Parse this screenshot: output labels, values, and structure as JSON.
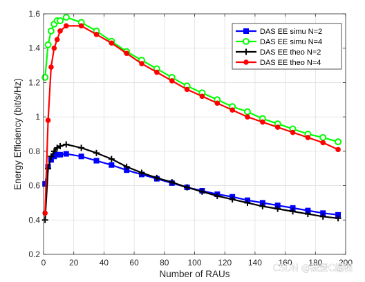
{
  "chart_data": {
    "type": "line",
    "xlabel": "Number of  RAUs",
    "ylabel": "Energy Efficiency (bit/s/Hz)",
    "xlim": [
      0,
      200
    ],
    "ylim": [
      0.2,
      1.6
    ],
    "xticks": [
      0,
      20,
      40,
      60,
      80,
      100,
      120,
      140,
      160,
      180,
      200
    ],
    "yticks": [
      0.2,
      0.4,
      0.6,
      0.8,
      1,
      1.2,
      1.4,
      1.6
    ],
    "xtick_labels": [
      "0",
      "20",
      "40",
      "60",
      "80",
      "100",
      "120",
      "140",
      "160",
      "180",
      "200"
    ],
    "ytick_labels": [
      "0.2",
      "0.4",
      "0.6",
      "0.8",
      "1",
      "1.2",
      "1.4",
      "1.6"
    ],
    "grid": true,
    "legend_position": "top-right",
    "x": [
      1,
      3,
      5,
      7,
      9,
      11,
      15,
      25,
      35,
      45,
      55,
      65,
      75,
      85,
      95,
      105,
      115,
      125,
      135,
      145,
      155,
      165,
      175,
      185,
      195
    ],
    "series": [
      {
        "name": "DAS EE simu N=2",
        "color": "#0000ff",
        "marker": "square",
        "values": [
          0.61,
          0.71,
          0.75,
          0.77,
          0.78,
          0.78,
          0.785,
          0.77,
          0.745,
          0.72,
          0.69,
          0.665,
          0.64,
          0.615,
          0.59,
          0.57,
          0.55,
          0.535,
          0.515,
          0.5,
          0.485,
          0.47,
          0.455,
          0.44,
          0.43
        ]
      },
      {
        "name": "DAS EE simu N=4",
        "color": "#00ff00",
        "marker": "circle",
        "values": [
          1.23,
          1.42,
          1.5,
          1.54,
          1.56,
          1.56,
          1.58,
          1.55,
          1.5,
          1.44,
          1.38,
          1.33,
          1.28,
          1.23,
          1.18,
          1.14,
          1.1,
          1.06,
          1.03,
          0.99,
          0.96,
          0.93,
          0.9,
          0.88,
          0.855
        ]
      },
      {
        "name": "DAS EE theo N=2",
        "color": "#000000",
        "marker": "plus",
        "values": [
          0.4,
          0.7,
          0.77,
          0.8,
          0.82,
          0.83,
          0.84,
          0.82,
          0.79,
          0.755,
          0.71,
          0.675,
          0.645,
          0.62,
          0.59,
          0.565,
          0.54,
          0.52,
          0.5,
          0.48,
          0.465,
          0.45,
          0.435,
          0.42,
          0.41
        ]
      },
      {
        "name": "DAS EE theo N=4",
        "color": "#ff0000",
        "marker": "dot",
        "values": [
          0.44,
          0.98,
          1.29,
          1.4,
          1.45,
          1.5,
          1.53,
          1.53,
          1.48,
          1.43,
          1.37,
          1.31,
          1.26,
          1.21,
          1.16,
          1.12,
          1.08,
          1.04,
          1.0,
          0.97,
          0.94,
          0.91,
          0.88,
          0.85,
          0.81
        ]
      }
    ]
  },
  "watermark": "CSDN @我爱C编程"
}
